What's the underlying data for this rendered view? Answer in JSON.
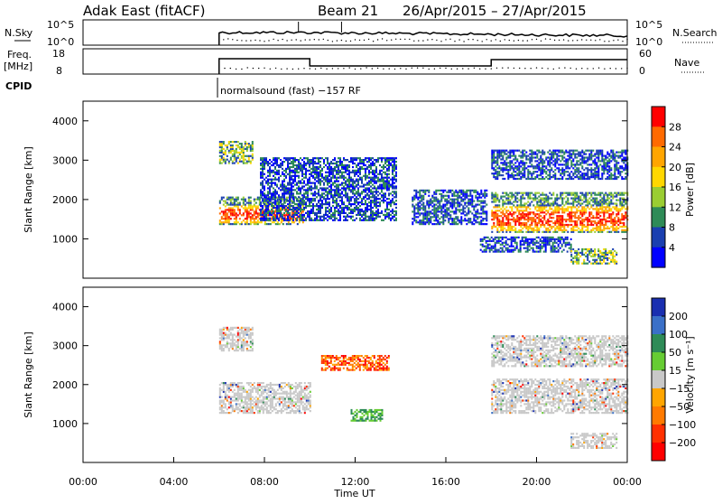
{
  "header": {
    "station": "Adak East (fitACF)",
    "beam": "Beam 21",
    "date_range": "26/Apr/2015 – 27/Apr/2015"
  },
  "top_panels": {
    "nsky_label": "N.Sky",
    "nsky_ticks": [
      "10^5",
      "10^0"
    ],
    "nsearch_label": "N.Search",
    "nsearch_ticks": [
      "10^5",
      "10^0"
    ],
    "freq_label": "Freq.",
    "freq_unit": "[MHz]",
    "freq_ticks": [
      "18",
      "8"
    ],
    "nave_label": "Nave",
    "nave_ticks": [
      "60",
      "0"
    ],
    "cpid_label": "CPID",
    "cpid_text": "normalsound (fast) −157 RF"
  },
  "chart_data": [
    {
      "type": "heatmap",
      "name": "power-panel",
      "ylabel": "Slant Range [km]",
      "xlabel": "",
      "ylim": [
        0,
        4500
      ],
      "xlim": [
        0,
        24
      ],
      "yticks": [
        1000,
        2000,
        3000,
        4000
      ],
      "colorbar": {
        "label": "Power [dB]",
        "ticks": [
          "28",
          "24",
          "20",
          "16",
          "12",
          "8",
          "4"
        ],
        "colors": [
          "#ff0000",
          "#ff6a00",
          "#ffa500",
          "#ffd700",
          "#9acd32",
          "#2e8b57",
          "#1a3fb0",
          "#0000ff"
        ]
      },
      "regions": [
        {
          "t0": 6.0,
          "t1": 9.7,
          "r0": 1400,
          "r1": 2100,
          "level": "high"
        },
        {
          "t0": 6.0,
          "t1": 7.5,
          "r0": 2950,
          "r1": 3500,
          "level": "mid"
        },
        {
          "t0": 7.8,
          "t1": 13.8,
          "r0": 1500,
          "r1": 3100,
          "level": "low"
        },
        {
          "t0": 14.5,
          "t1": 17.8,
          "r0": 1400,
          "r1": 2300,
          "level": "low"
        },
        {
          "t0": 18.0,
          "t1": 24.0,
          "r0": 1200,
          "r1": 2200,
          "level": "high"
        },
        {
          "t0": 18.0,
          "t1": 24.0,
          "r0": 2550,
          "r1": 3300,
          "level": "low"
        },
        {
          "t0": 17.5,
          "t1": 21.5,
          "r0": 700,
          "r1": 1100,
          "level": "low"
        },
        {
          "t0": 21.5,
          "t1": 23.5,
          "r0": 400,
          "r1": 800,
          "level": "mid"
        }
      ]
    },
    {
      "type": "heatmap",
      "name": "velocity-panel",
      "ylabel": "Slant Range [km]",
      "xlabel": "Time UT",
      "ylim": [
        0,
        4500
      ],
      "xlim": [
        0,
        24
      ],
      "yticks": [
        1000,
        2000,
        3000,
        4000
      ],
      "xticks": [
        "00:00",
        "04:00",
        "08:00",
        "12:00",
        "16:00",
        "20:00",
        "00:00"
      ],
      "colorbar": {
        "label": "Velocity [m s⁻¹]",
        "ticks": [
          "200",
          "100",
          "50",
          "15",
          "−15",
          "−50",
          "−100",
          "−200"
        ],
        "colors": [
          "#1a2fb0",
          "#3a70c8",
          "#2e8b57",
          "#66cc33",
          "#c8c8c8",
          "#ffa500",
          "#ff7a00",
          "#ff3000",
          "#ff0000"
        ]
      },
      "regions": [
        {
          "t0": 6.0,
          "t1": 10.0,
          "r0": 1300,
          "r1": 2100,
          "level": "zero"
        },
        {
          "t0": 6.0,
          "t1": 7.5,
          "r0": 2900,
          "r1": 3500,
          "level": "zero"
        },
        {
          "t0": 10.5,
          "t1": 13.5,
          "r0": 2400,
          "r1": 2800,
          "level": "neg"
        },
        {
          "t0": 11.8,
          "t1": 13.2,
          "r0": 1100,
          "r1": 1400,
          "level": "pos"
        },
        {
          "t0": 18.0,
          "t1": 24.0,
          "r0": 1300,
          "r1": 2200,
          "level": "zero"
        },
        {
          "t0": 18.0,
          "t1": 24.0,
          "r0": 2500,
          "r1": 3300,
          "level": "zero"
        },
        {
          "t0": 21.5,
          "t1": 23.5,
          "r0": 400,
          "r1": 800,
          "level": "zero"
        }
      ]
    }
  ]
}
